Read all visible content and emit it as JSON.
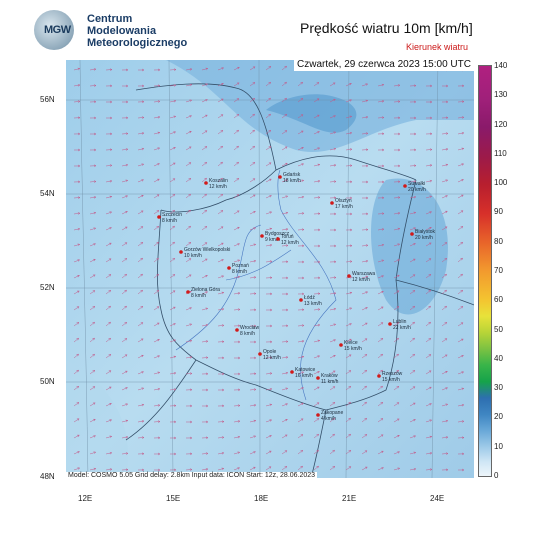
{
  "header": {
    "org_line1": "Centrum",
    "org_line2": "Modelowania",
    "org_line3": "Meteorologicznego",
    "logo_text": "MGW",
    "title": "Prędkość wiatru 10m [km/h]",
    "subtitle": "Kierunek wiatru",
    "date": "Czwartek, 29 czerwca 2023 15:00 UTC"
  },
  "footer": "Model: COSMO 5.05  Grid delay: 2.8km  Input data: ICON  Start: 12z, 28.06.2023",
  "axes": {
    "lat_labels": [
      "56N",
      "54N",
      "52N",
      "50N",
      "48N"
    ],
    "lon_labels": [
      "12E",
      "15E",
      "18E",
      "21E",
      "24E"
    ]
  },
  "colorbar": {
    "labels": [
      "140",
      "130",
      "120",
      "110",
      "100",
      "90",
      "80",
      "70",
      "60",
      "50",
      "40",
      "30",
      "20",
      "10",
      "0"
    ]
  },
  "cities": [
    {
      "name": "Gdańsk",
      "wind": "18 km/h"
    },
    {
      "name": "Koszalin",
      "wind": "12 km/h"
    },
    {
      "name": "Suwałki",
      "wind": "20 km/h"
    },
    {
      "name": "Olsztyn",
      "wind": "17 km/h"
    },
    {
      "name": "Szczecin",
      "wind": "8 km/h"
    },
    {
      "name": "Bydgoszcz",
      "wind": "9 km/h"
    },
    {
      "name": "Toruń",
      "wind": "12 km/h"
    },
    {
      "name": "Białystok",
      "wind": "20 km/h"
    },
    {
      "name": "Gorzów Wielkopolski",
      "wind": "10 km/h"
    },
    {
      "name": "Poznań",
      "wind": "8 km/h"
    },
    {
      "name": "Warszawa",
      "wind": "12 km/h"
    },
    {
      "name": "Zielona Góra",
      "wind": "8 km/h"
    },
    {
      "name": "Łódź",
      "wind": "13 km/h"
    },
    {
      "name": "Lublin",
      "wind": "22 km/h"
    },
    {
      "name": "Wrocław",
      "wind": "8 km/h"
    },
    {
      "name": "Kielce",
      "wind": "15 km/h"
    },
    {
      "name": "Opole",
      "wind": "12 km/h"
    },
    {
      "name": "Katowice",
      "wind": "16 km/h"
    },
    {
      "name": "Kraków",
      "wind": "11 km/h"
    },
    {
      "name": "Rzeszów",
      "wind": "15 km/h"
    },
    {
      "name": "Zakopane",
      "wind": "4 km/h"
    }
  ]
}
